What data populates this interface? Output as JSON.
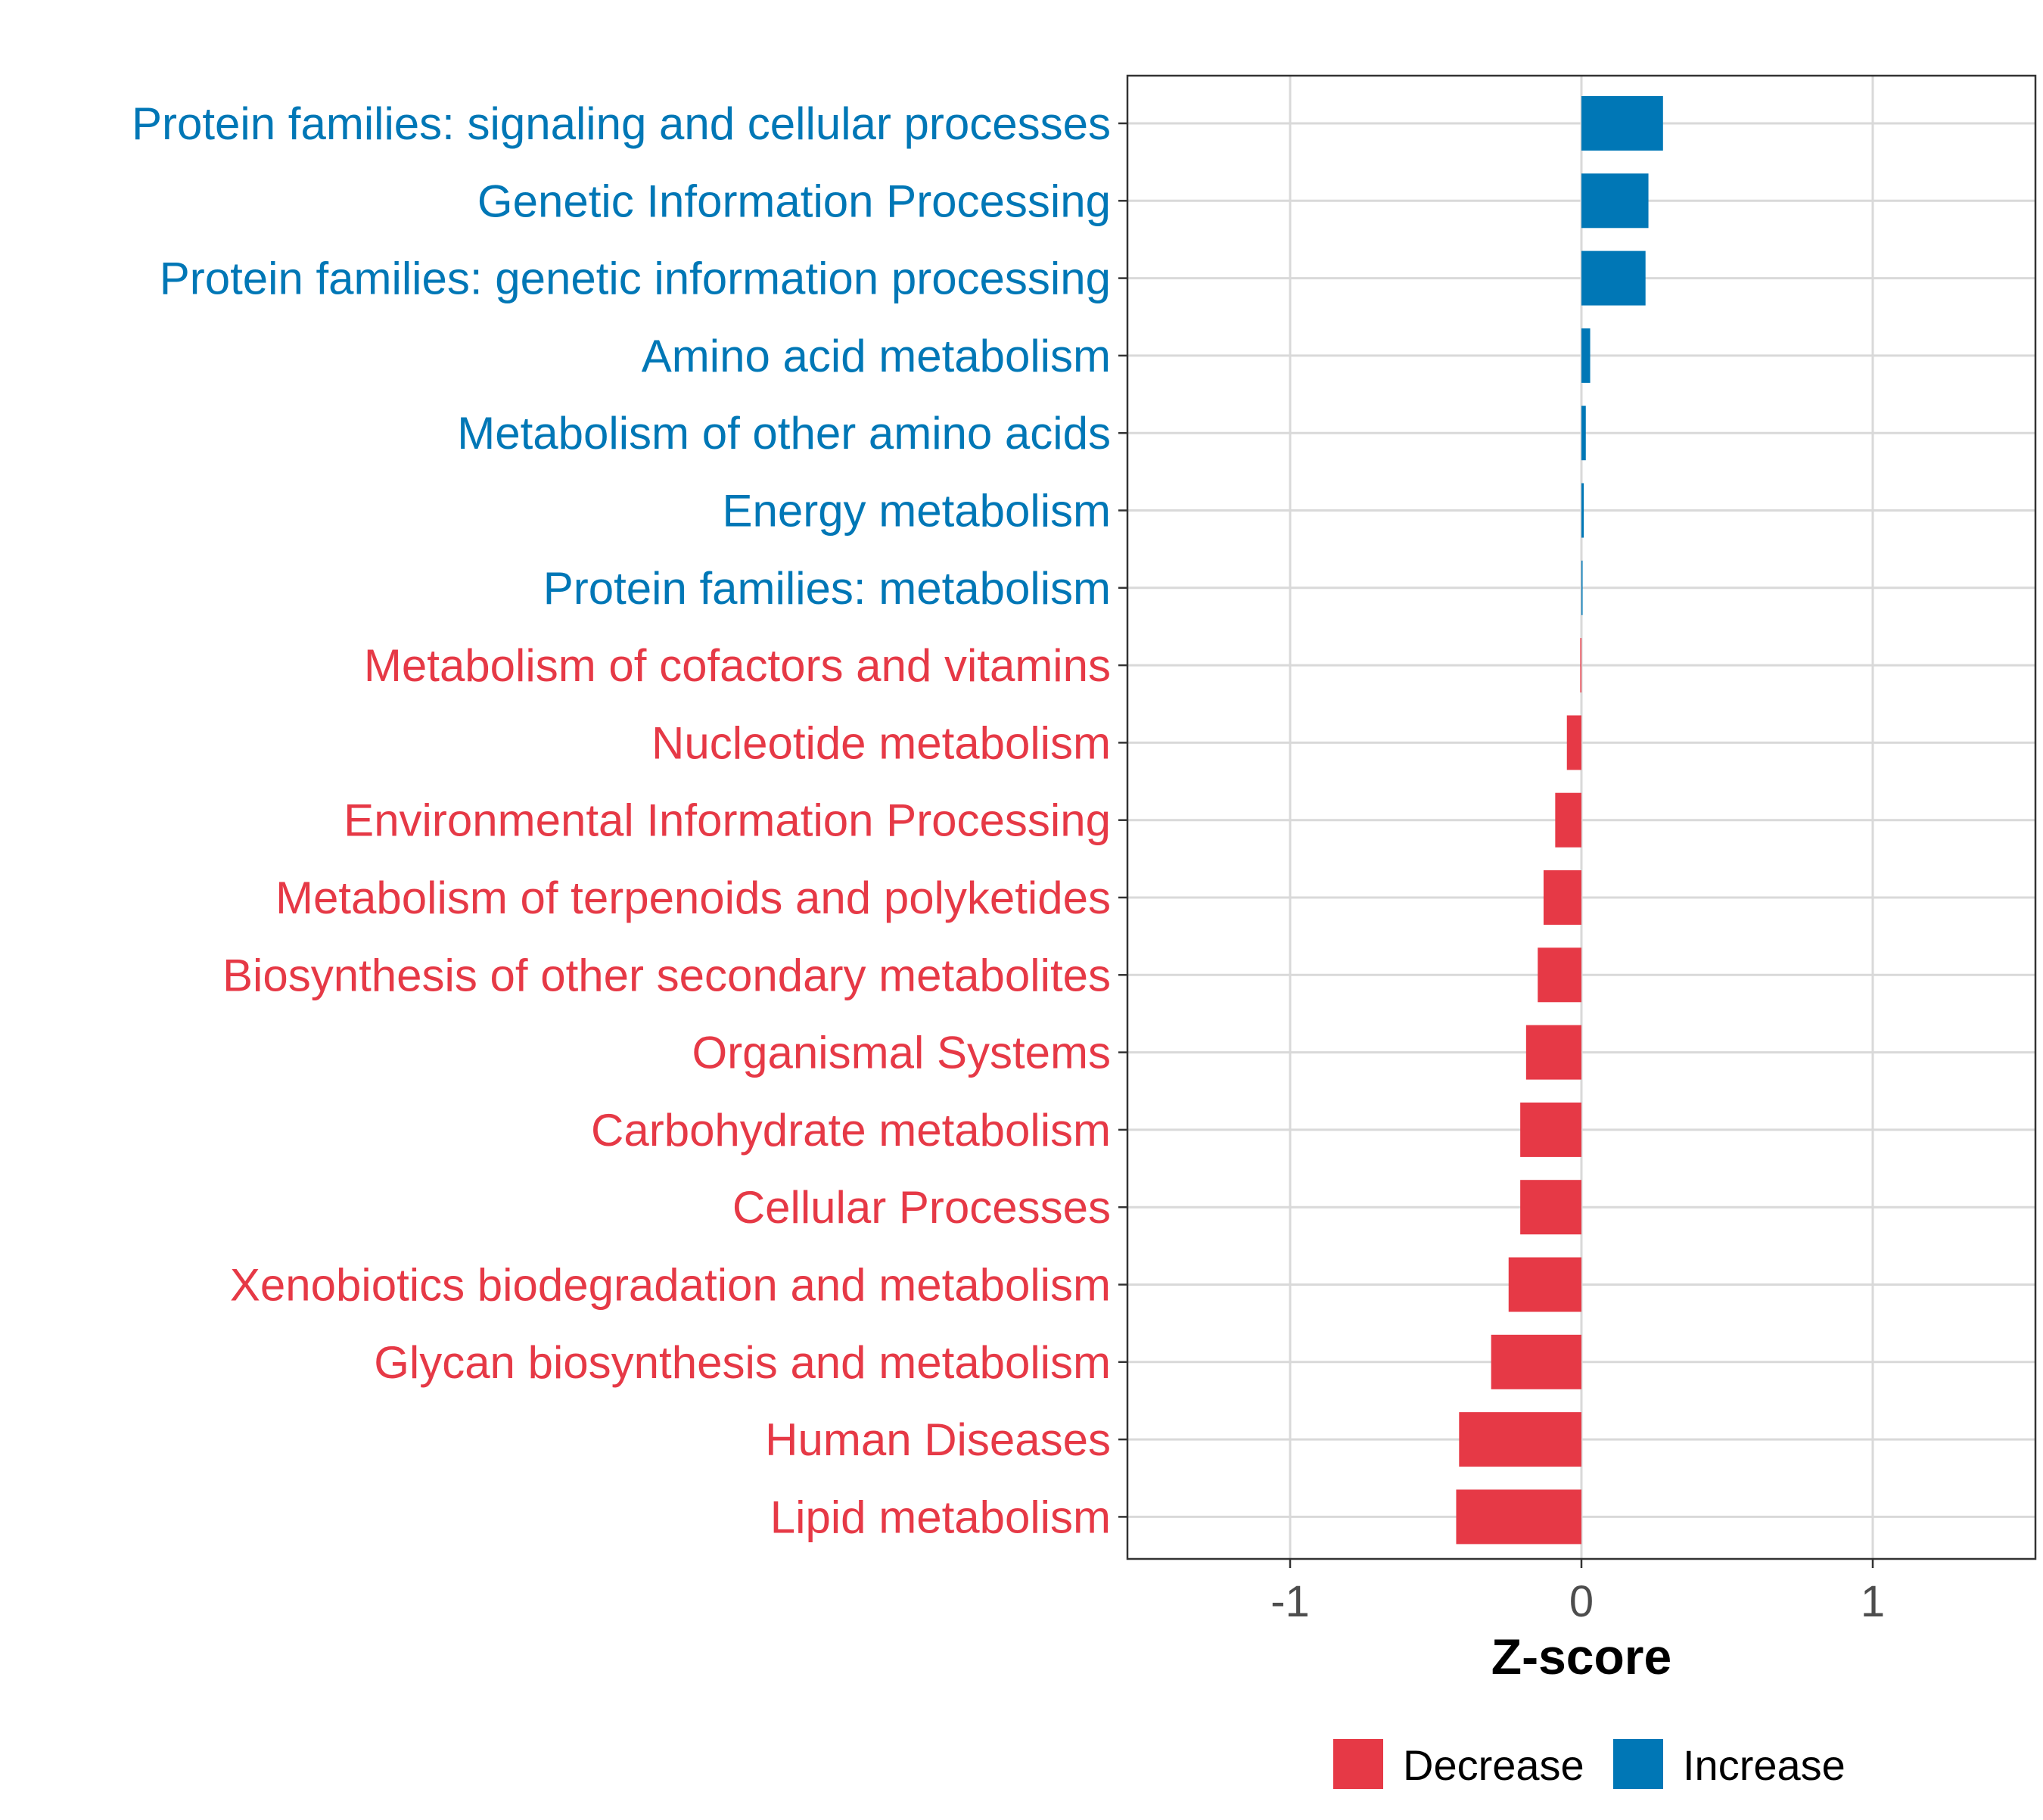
{
  "chart_data": {
    "type": "bar",
    "orientation": "horizontal",
    "title": "",
    "xlabel": "Z-score",
    "ylabel": "",
    "xlim": [
      -1.5,
      1.55
    ],
    "x_ticks": [
      -1,
      0,
      1
    ],
    "x_tick_labels": [
      "-1",
      "0",
      "1"
    ],
    "grid": true,
    "legend_position": "bottom",
    "legend": [
      {
        "label": "Decrease",
        "color": "#E63946"
      },
      {
        "label": "Increase",
        "color": "#0077B6"
      }
    ],
    "colors": {
      "Increase": "#0077B6",
      "Decrease": "#E63946"
    },
    "categories": [
      "Protein families: signaling and cellular processes",
      "Genetic Information Processing",
      "Protein families: genetic information processing",
      "Amino acid metabolism",
      "Metabolism of other amino acids",
      "Energy metabolism",
      "Protein families: metabolism",
      "Metabolism of cofactors and vitamins",
      "Nucleotide metabolism",
      "Environmental Information Processing",
      "Metabolism of terpenoids and polyketides",
      "Biosynthesis of other secondary metabolites",
      "Organismal Systems",
      "Carbohydrate metabolism",
      "Cellular Processes",
      "Xenobiotics biodegradation and metabolism",
      "Glycan biosynthesis and metabolism",
      "Human Diseases",
      "Lipid metabolism"
    ],
    "values": [
      0.28,
      0.23,
      0.22,
      0.03,
      0.015,
      0.008,
      0.004,
      -0.004,
      -0.05,
      -0.09,
      -0.13,
      -0.15,
      -0.19,
      -0.21,
      -0.21,
      -0.25,
      -0.31,
      -0.42,
      -0.43
    ],
    "groups": [
      "Increase",
      "Increase",
      "Increase",
      "Increase",
      "Increase",
      "Increase",
      "Increase",
      "Decrease",
      "Decrease",
      "Decrease",
      "Decrease",
      "Decrease",
      "Decrease",
      "Decrease",
      "Decrease",
      "Decrease",
      "Decrease",
      "Decrease",
      "Decrease"
    ]
  }
}
